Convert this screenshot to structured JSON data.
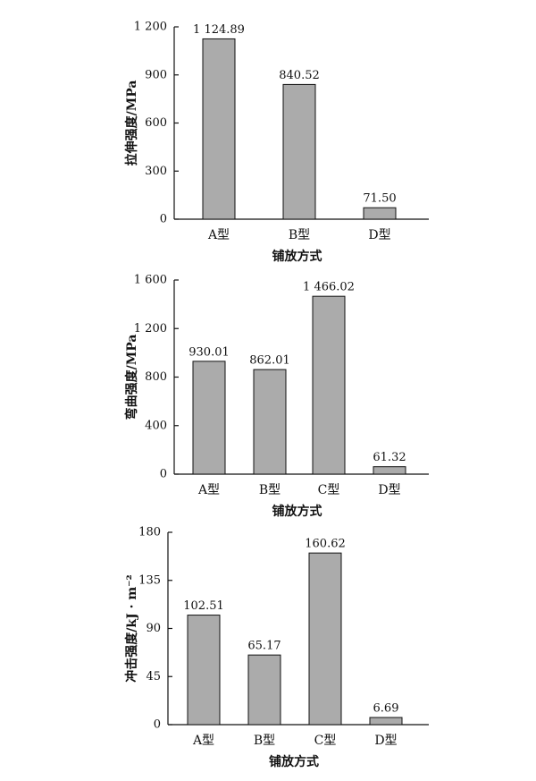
{
  "chart_data": [
    {
      "type": "bar",
      "ylabel": "拉伸强度/MPa",
      "xlabel": "铺放方式",
      "categories": [
        "A型",
        "B型",
        "D型"
      ],
      "values": [
        1124.89,
        840.52,
        71.5
      ],
      "value_labels": [
        "1 124.89",
        "840.52",
        "71.50"
      ],
      "color": "#ababab",
      "ylim": [
        0,
        1200
      ],
      "yticks": [
        0,
        300,
        600,
        900,
        {
          "value": 1200,
          "label": "1 200"
        }
      ]
    },
    {
      "type": "bar",
      "ylabel": "弯曲强度/MPa",
      "xlabel": "铺放方式",
      "categories": [
        "A型",
        "B型",
        "C型",
        "D型"
      ],
      "values": [
        930.01,
        862.01,
        1466.02,
        61.32
      ],
      "value_labels": [
        "930.01",
        "862.01",
        "1 466.02",
        "61.32"
      ],
      "color": "#ababab",
      "ylim": [
        0,
        1600
      ],
      "yticks": [
        0,
        400,
        800,
        {
          "value": 1200,
          "label": "1 200"
        },
        {
          "value": 1600,
          "label": "1 600"
        }
      ]
    },
    {
      "type": "bar",
      "ylabel": "冲击强度/kJ · m⁻²",
      "xlabel": "铺放方式",
      "categories": [
        "A型",
        "B型",
        "C型",
        "D型"
      ],
      "values": [
        102.51,
        65.17,
        160.62,
        6.69
      ],
      "value_labels": [
        "102.51",
        "65.17",
        "160.62",
        "6.69"
      ],
      "color": "#ababab",
      "ylim": [
        0,
        180
      ],
      "yticks": [
        0,
        45,
        90,
        135,
        180
      ]
    }
  ]
}
